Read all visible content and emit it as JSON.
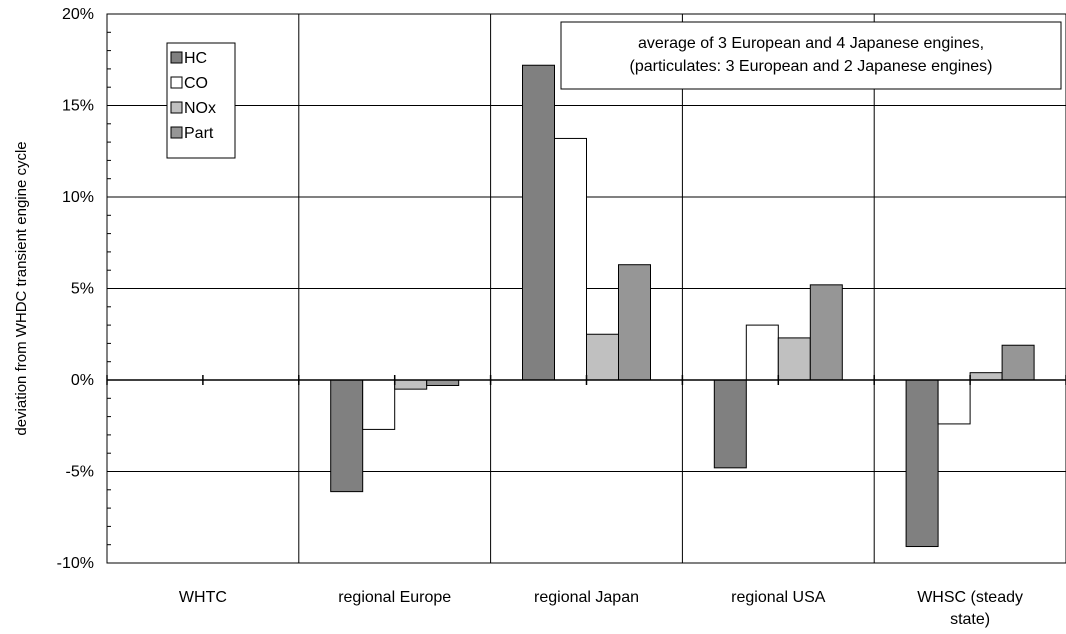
{
  "chart_data": {
    "type": "bar",
    "title": "",
    "xlabel": "",
    "ylabel": "deviation from WHDC transient engine cycle",
    "ylim": [
      -10,
      20
    ],
    "yticks": [
      -10,
      -5,
      0,
      5,
      10,
      15,
      20
    ],
    "ytick_labels": [
      "-10%",
      "-5%",
      "0%",
      "5%",
      "10%",
      "15%",
      "20%"
    ],
    "grid": true,
    "legend_position": "top-left",
    "categories": [
      "WHTC",
      "regional Europe",
      "regional Japan",
      "regional USA",
      "WHSC (steady state)"
    ],
    "category_labels": [
      [
        "WHTC"
      ],
      [
        "regional Europe"
      ],
      [
        "regional Japan"
      ],
      [
        "regional USA"
      ],
      [
        "WHSC (steady",
        "state)"
      ]
    ],
    "series": [
      {
        "name": "HC",
        "color": "#808080",
        "values": [
          0,
          -6.1,
          17.2,
          -4.8,
          -9.1
        ]
      },
      {
        "name": "CO",
        "color": "#ffffff",
        "values": [
          0,
          -2.7,
          13.2,
          3.0,
          -2.4
        ]
      },
      {
        "name": "NOx",
        "color": "#c0c0c0",
        "values": [
          0,
          -0.5,
          2.5,
          2.3,
          0.4
        ]
      },
      {
        "name": "Part",
        "color": "#969696",
        "values": [
          0,
          -0.3,
          6.3,
          5.2,
          1.9
        ]
      }
    ],
    "annotation": [
      "average of 3 European and 4 Japanese engines,",
      "(particulates: 3 European and 2 Japanese engines)"
    ]
  }
}
